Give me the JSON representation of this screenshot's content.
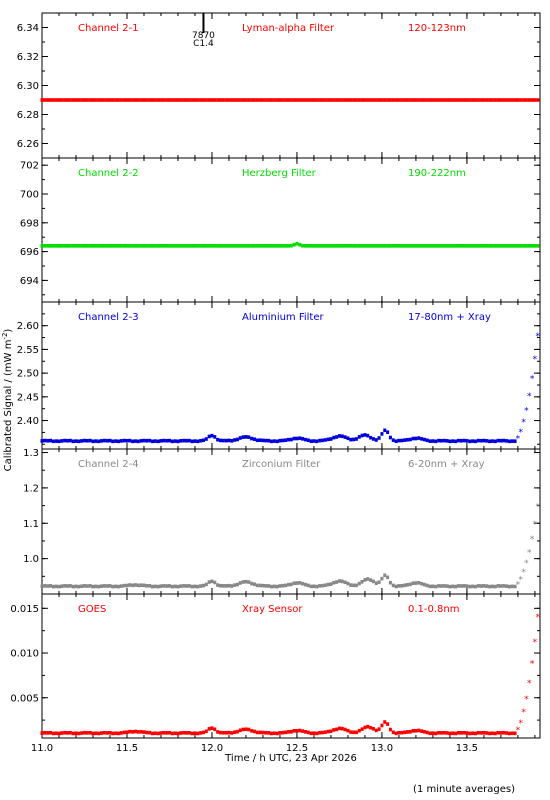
{
  "figure": {
    "ylabel": "Calibrated Signal / (mW m",
    "ylabel_sup": "-2",
    "ylabel_close": ")",
    "xlabel": "Time / h UTC, 23 Apr 2026",
    "footnote": "(1 minute averages)",
    "xlim": [
      11.0,
      13.93
    ],
    "xticks": [
      "11.0",
      "11.5",
      "12.0",
      "12.5",
      "13.0",
      "13.5"
    ],
    "flare_marker": {
      "x": 11.95,
      "line1": "7870",
      "line2": "C1.4"
    }
  },
  "chart_data": [
    {
      "type": "scatter",
      "channel": "Channel 2-1",
      "filter": "Lyman-alpha Filter",
      "band": "120-123nm",
      "color": "#ff0000",
      "ylim": [
        6.25,
        6.35
      ],
      "yticks": [
        "6.26",
        "6.28",
        "6.30",
        "6.32",
        "6.34"
      ],
      "baseline": 6.29,
      "bumps": [],
      "rise": null
    },
    {
      "type": "scatter",
      "channel": "Channel 2-2",
      "filter": "Herzberg Filter",
      "band": "190-222nm",
      "color": "#00dd00",
      "ylim": [
        692.5,
        702.5
      ],
      "yticks": [
        "694",
        "696",
        "698",
        "700",
        "702"
      ],
      "baseline": 696.4,
      "bumps": [
        {
          "x": 12.5,
          "h": 0.15,
          "w": 0.02
        }
      ],
      "rise": null
    },
    {
      "type": "scatter",
      "channel": "Channel 2-3",
      "filter": "Aluminium Filter",
      "band": "17-80nm + Xray",
      "color": "#0000dd",
      "ylim": [
        2.34,
        2.65
      ],
      "yticks": [
        "2.40",
        "2.45",
        "2.50",
        "2.55",
        "2.60"
      ],
      "baseline": 2.357,
      "bumps": [
        {
          "x": 12.0,
          "h": 0.012,
          "w": 0.03
        },
        {
          "x": 12.2,
          "h": 0.008,
          "w": 0.06
        },
        {
          "x": 12.5,
          "h": 0.006,
          "w": 0.05
        },
        {
          "x": 12.75,
          "h": 0.01,
          "w": 0.06
        },
        {
          "x": 12.9,
          "h": 0.012,
          "w": 0.05
        },
        {
          "x": 13.02,
          "h": 0.022,
          "w": 0.03
        },
        {
          "x": 13.2,
          "h": 0.006,
          "w": 0.05
        }
      ],
      "rise": {
        "start": 13.78,
        "end": 13.93,
        "peak": 2.62
      }
    },
    {
      "type": "scatter",
      "channel": "Channel 2-4",
      "filter": "Zirconium Filter",
      "band": "6-20nm + Xray",
      "color": "#888888",
      "ylim": [
        0.9,
        1.31
      ],
      "yticks": [
        "1.0",
        "1.1",
        "1.2",
        "1.3"
      ],
      "baseline": 0.922,
      "bumps": [
        {
          "x": 11.55,
          "h": 0.004,
          "w": 0.05
        },
        {
          "x": 12.0,
          "h": 0.015,
          "w": 0.03
        },
        {
          "x": 12.2,
          "h": 0.012,
          "w": 0.06
        },
        {
          "x": 12.5,
          "h": 0.01,
          "w": 0.05
        },
        {
          "x": 12.75,
          "h": 0.014,
          "w": 0.06
        },
        {
          "x": 12.92,
          "h": 0.02,
          "w": 0.05
        },
        {
          "x": 13.02,
          "h": 0.03,
          "w": 0.03
        },
        {
          "x": 13.2,
          "h": 0.01,
          "w": 0.05
        }
      ],
      "rise": {
        "start": 13.78,
        "end": 13.93,
        "peak": 1.19
      }
    },
    {
      "type": "scatter",
      "channel": "GOES",
      "filter": "Xray Sensor",
      "band": "0.1-0.8nm",
      "color": "#ff0000",
      "ylim": [
        0.0005,
        0.0166
      ],
      "yticks": [
        "0.005",
        "0.010",
        "0.015"
      ],
      "baseline": 0.00105,
      "bumps": [
        {
          "x": 11.55,
          "h": 0.0002,
          "w": 0.05
        },
        {
          "x": 12.0,
          "h": 0.0006,
          "w": 0.03
        },
        {
          "x": 12.2,
          "h": 0.0004,
          "w": 0.06
        },
        {
          "x": 12.5,
          "h": 0.0003,
          "w": 0.05
        },
        {
          "x": 12.75,
          "h": 0.0005,
          "w": 0.06
        },
        {
          "x": 12.92,
          "h": 0.0007,
          "w": 0.05
        },
        {
          "x": 13.02,
          "h": 0.0012,
          "w": 0.03
        },
        {
          "x": 13.2,
          "h": 0.0003,
          "w": 0.05
        }
      ],
      "rise": {
        "start": 13.78,
        "end": 13.93,
        "peak": 0.0165
      }
    }
  ]
}
